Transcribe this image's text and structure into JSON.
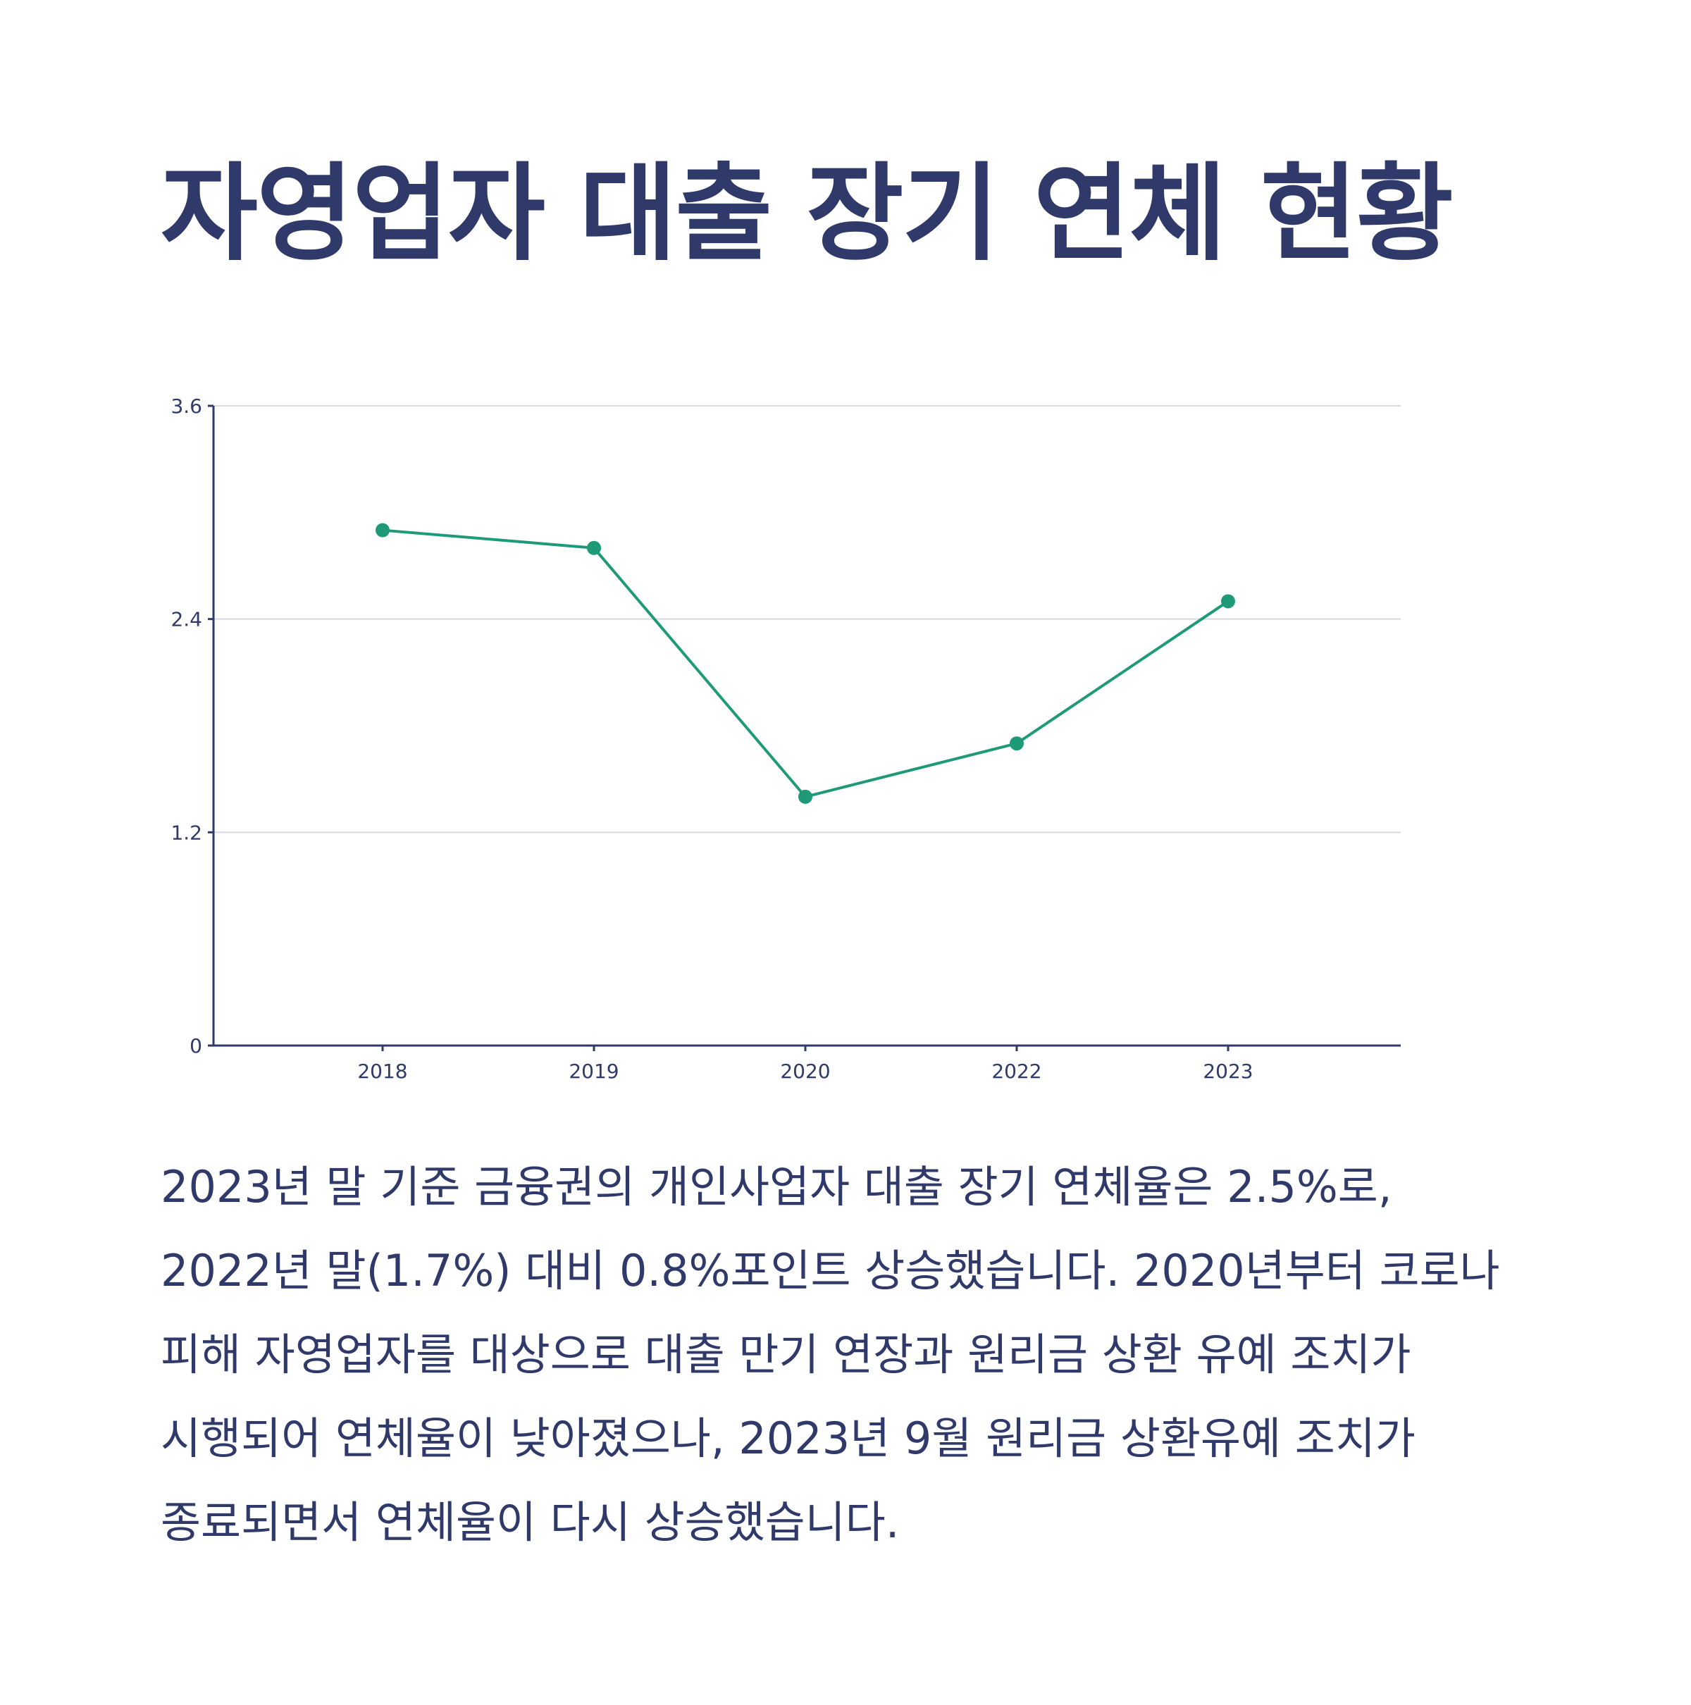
{
  "title": "자영업자 대출 장기 연체 현황",
  "chart_data": {
    "type": "line",
    "categories": [
      "2018",
      "2019",
      "2020",
      "2022",
      "2023"
    ],
    "series": [
      {
        "values": [
          2.9,
          2.8,
          1.4,
          1.7,
          2.5
        ]
      }
    ],
    "ylim": [
      0,
      3.6
    ],
    "yticks": [
      "0",
      "1.2",
      "2.4",
      "3.6"
    ],
    "grid": true,
    "colors": {
      "line": "#1e9a78",
      "axis": "#2f3a6b",
      "grid": "#d6d9e0"
    }
  },
  "description": "2023년 말 기준 금융권의 개인사업자 대출 장기 연체율은 2.5%로, 2022년 말(1.7%) 대비 0.8%포인트 상승했습니다. 2020년부터 코로나 피해 자영업자를 대상으로 대출 만기 연장과 원리금 상환 유예 조치가 시행되어 연체율이 낮아졌으나, 2023년 9월 원리금 상환유예 조치가 종료되면서 연체율이 다시 상승했습니다."
}
